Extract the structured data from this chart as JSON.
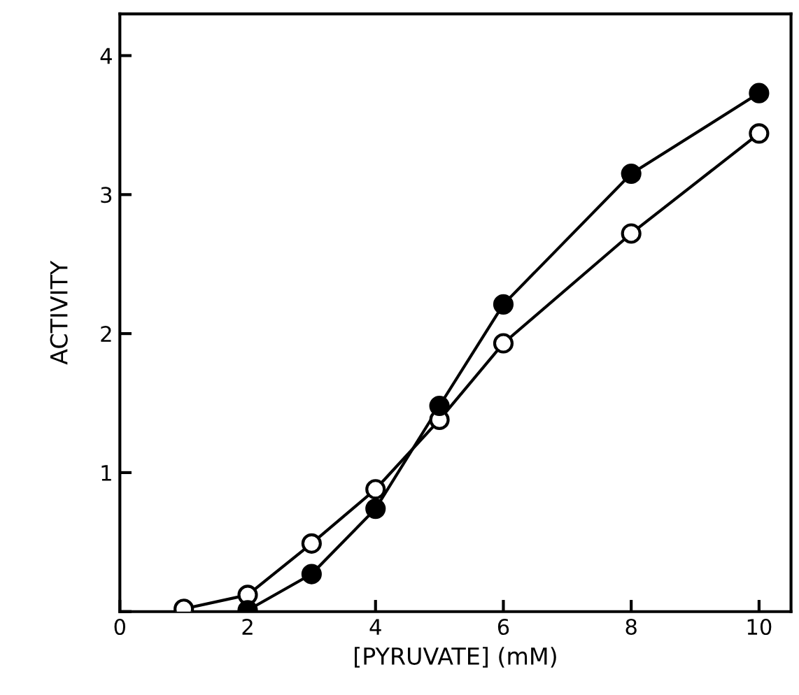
{
  "chart_data": {
    "type": "line",
    "xlabel": "[PYRUVATE] (mM)",
    "ylabel": "ACTIVITY",
    "xlim": [
      0,
      10.5
    ],
    "ylim": [
      0,
      4.3
    ],
    "xticks": [
      0,
      2,
      4,
      6,
      8,
      10
    ],
    "yticks": [
      {
        "value": 0,
        "label": null
      },
      1,
      2,
      3,
      4
    ],
    "marker": "circle",
    "line_style": "solid",
    "grid": false,
    "series": [
      {
        "color": "#000000",
        "x": [
          1,
          2,
          3,
          4,
          5,
          6,
          8,
          10
        ],
        "values": [
          0.02,
          0.12,
          0.49,
          0.88,
          1.38,
          1.93,
          2.72,
          3.44
        ]
      },
      {
        "color": "#000000",
        "x": [
          2,
          3,
          4,
          5,
          6,
          8,
          10
        ],
        "values": [
          0.01,
          0.27,
          0.74,
          1.48,
          2.21,
          3.15,
          3.73
        ]
      }
    ]
  }
}
